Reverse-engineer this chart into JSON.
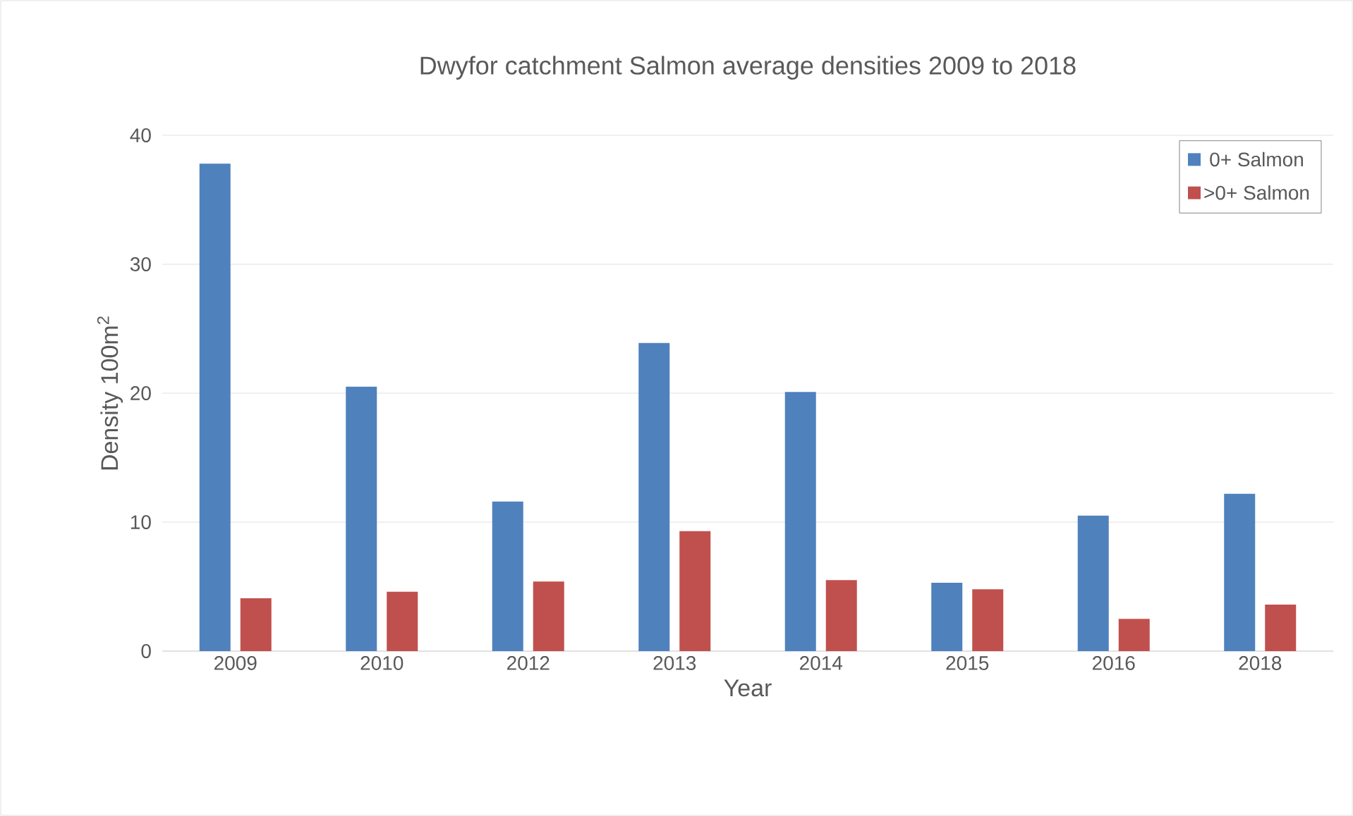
{
  "chart_data": {
    "type": "bar",
    "title": "Dwyfor catchment Salmon average densities 2009 to 2018",
    "xlabel": "Year",
    "ylabel": "Density 100m$^{2}$",
    "categories": [
      "2009",
      "2010",
      "2012",
      "2013",
      "2014",
      "2015",
      "2016",
      "2018"
    ],
    "series": [
      {
        "name": "0+ Salmon",
        "color": "#4f81bd",
        "values": [
          37.8,
          20.5,
          11.6,
          23.9,
          20.1,
          5.3,
          10.5,
          12.2
        ]
      },
      {
        "name": ">0+ Salmon",
        "color": "#c0504d",
        "values": [
          4.1,
          4.6,
          5.4,
          9.3,
          5.5,
          4.8,
          2.5,
          3.6
        ]
      }
    ],
    "ylim": [
      0,
      40
    ],
    "yticks": [
      0,
      10,
      20,
      30,
      40
    ],
    "grid": "y",
    "legend": "top right"
  }
}
